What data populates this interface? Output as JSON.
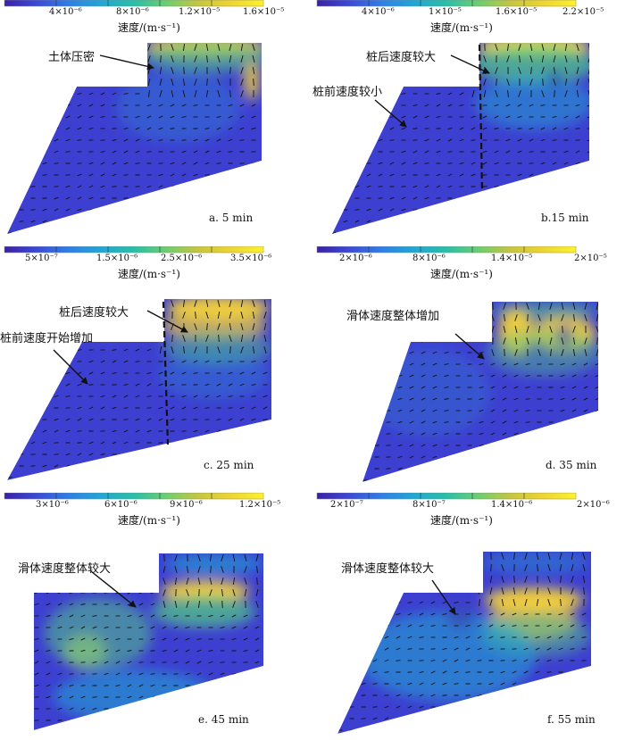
{
  "colorbar": {
    "unit_label": "速度/(m·s⁻¹)",
    "stops": [
      "#3b20a8",
      "#3b4ad8",
      "#2f7fe8",
      "#1fa8d6",
      "#27c0a7",
      "#6dce6f",
      "#c8c63c",
      "#f0d52e",
      "#fdf22a"
    ]
  },
  "field_colors": {
    "low": "#3d3fd0",
    "mid": "#1faad2",
    "green": "#52c487",
    "high": "#f4d23a",
    "peak": "#f7e43a"
  },
  "panels": [
    {
      "id": "a",
      "caption": "a. 5 min",
      "ticks": [
        "4×10⁻⁶",
        "8×10⁻⁶",
        "1.2×10⁻⁵",
        "1.6×10⁻⁵"
      ],
      "annotations": [
        {
          "text": "土体压密"
        }
      ],
      "dashed_line": false
    },
    {
      "id": "b",
      "caption": "b.15 min",
      "ticks": [
        "4×10⁻⁶",
        "1×10⁻⁵",
        "1.6×10⁻⁵",
        "2.2×10⁻⁵"
      ],
      "annotations": [
        {
          "text": "桩后速度较大"
        },
        {
          "text": "桩前速度较小"
        }
      ],
      "dashed_line": true
    },
    {
      "id": "c",
      "caption": "c. 25 min",
      "ticks": [
        "5×10⁻⁷",
        "1.5×10⁻⁶",
        "2.5×10⁻⁶",
        "3.5×10⁻⁶"
      ],
      "annotations": [
        {
          "text": "桩后速度较大"
        },
        {
          "text": "桩前速度开始增加"
        }
      ],
      "dashed_line": true
    },
    {
      "id": "d",
      "caption": "d. 35 min",
      "ticks": [
        "2×10⁻⁶",
        "8×10⁻⁶",
        "1.4×10⁻⁵",
        "2×10⁻⁵"
      ],
      "annotations": [
        {
          "text": "滑体速度整体增加"
        }
      ],
      "dashed_line": false
    },
    {
      "id": "e",
      "caption": "e. 45 min",
      "ticks": [
        "3×10⁻⁶",
        "6×10⁻⁶",
        "9×10⁻⁶",
        "1.2×10⁻⁵"
      ],
      "annotations": [
        {
          "text": "滑体速度整体较大"
        }
      ],
      "dashed_line": false
    },
    {
      "id": "f",
      "caption": "f. 55 min",
      "ticks": [
        "2×10⁻⁷",
        "8×10⁻⁷",
        "1.4×10⁻⁶",
        "2×10⁻⁶"
      ],
      "annotations": [
        {
          "text": "滑体速度整体较大"
        }
      ],
      "dashed_line": false
    }
  ]
}
